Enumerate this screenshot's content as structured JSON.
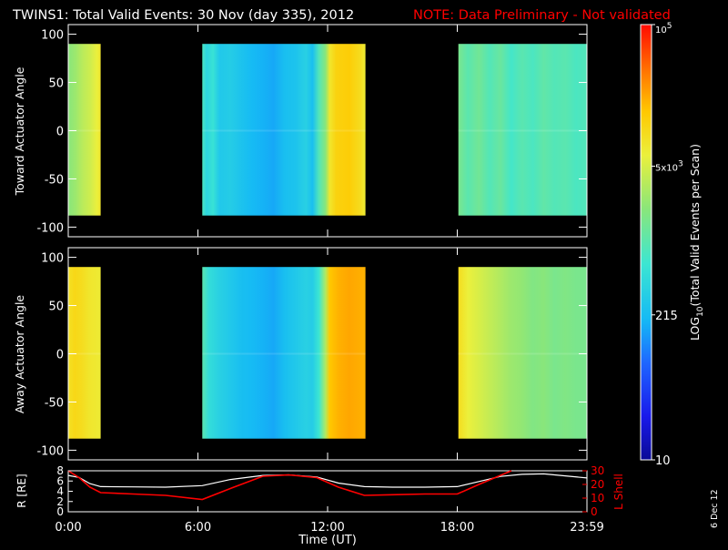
{
  "title": {
    "main": "TWINS1: Total Valid Events: 30 Nov (day 335), 2012",
    "note": "NOTE: Data Preliminary - Not validated"
  },
  "colors": {
    "background": "#000000",
    "text": "#ffffff",
    "note": "#ff0000",
    "r_line": "#ffffff",
    "lshell_line": "#ff0000"
  },
  "date_stamp": "6 Dec 12",
  "xlabel": "Time (UT)",
  "x_ticks": [
    "0:00",
    "6:00",
    "12:00",
    "18:00",
    "23:59"
  ],
  "colorbar": {
    "label": "LOG10(Total Valid Events per Scan)",
    "ticks": [
      "10",
      "215",
      "5x10^3",
      "10^5"
    ],
    "scale": "log",
    "range": [
      10,
      100000
    ]
  },
  "chart_data": [
    {
      "type": "heatmap",
      "name": "toward",
      "ylabel": "Toward Actuator Angle",
      "ylim": [
        -110,
        110
      ],
      "y_ticks": [
        100,
        50,
        0,
        -50,
        -100
      ],
      "data_y_range": [
        -88,
        90
      ],
      "blocks": [
        {
          "t_start": 0.0,
          "t_end": 1.5,
          "profile": [
            [
              0.0,
              3.3
            ],
            [
              0.33,
              3.4
            ],
            [
              0.67,
              3.55
            ],
            [
              1.0,
              3.65
            ],
            [
              1.33,
              3.8
            ],
            [
              1.5,
              3.9
            ]
          ]
        },
        {
          "t_start": 6.2,
          "t_end": 13.75,
          "profile": [
            [
              6.2,
              2.9
            ],
            [
              6.4,
              2.6
            ],
            [
              6.7,
              2.75
            ],
            [
              7.0,
              2.45
            ],
            [
              7.5,
              2.5
            ],
            [
              8.0,
              2.4
            ],
            [
              8.5,
              2.3
            ],
            [
              9.0,
              2.25
            ],
            [
              9.5,
              2.2
            ],
            [
              10.0,
              2.35
            ],
            [
              10.5,
              2.4
            ],
            [
              11.0,
              2.55
            ],
            [
              11.3,
              2.35
            ],
            [
              11.6,
              2.95
            ],
            [
              11.9,
              3.3
            ],
            [
              12.1,
              3.9
            ],
            [
              12.4,
              4.1
            ],
            [
              13.0,
              4.15
            ],
            [
              13.5,
              4.0
            ],
            [
              13.75,
              3.85
            ]
          ]
        },
        {
          "t_start": 18.05,
          "t_end": 24.0,
          "profile": [
            [
              18.05,
              3.2
            ],
            [
              18.5,
              3.0
            ],
            [
              19.0,
              3.15
            ],
            [
              19.5,
              2.95
            ],
            [
              20.0,
              3.1
            ],
            [
              20.5,
              2.85
            ],
            [
              21.0,
              3.0
            ],
            [
              21.5,
              2.9
            ],
            [
              22.0,
              3.05
            ],
            [
              22.5,
              2.95
            ],
            [
              23.0,
              3.0
            ],
            [
              23.5,
              2.9
            ],
            [
              24.0,
              2.95
            ]
          ]
        }
      ]
    },
    {
      "type": "heatmap",
      "name": "away",
      "ylabel": "Away Actuator Angle",
      "ylim": [
        -110,
        110
      ],
      "y_ticks": [
        100,
        50,
        0,
        -50,
        -100
      ],
      "data_y_range": [
        -88,
        90
      ],
      "blocks": [
        {
          "t_start": 0.0,
          "t_end": 1.5,
          "profile": [
            [
              0.0,
              3.95
            ],
            [
              0.3,
              4.05
            ],
            [
              0.6,
              4.0
            ],
            [
              1.0,
              3.9
            ],
            [
              1.5,
              3.85
            ]
          ]
        },
        {
          "t_start": 6.2,
          "t_end": 13.75,
          "profile": [
            [
              6.2,
              3.0
            ],
            [
              6.5,
              2.7
            ],
            [
              7.0,
              2.55
            ],
            [
              7.5,
              2.45
            ],
            [
              8.0,
              2.35
            ],
            [
              8.5,
              2.3
            ],
            [
              9.0,
              2.25
            ],
            [
              9.5,
              2.2
            ],
            [
              10.0,
              2.35
            ],
            [
              10.5,
              2.45
            ],
            [
              11.0,
              2.55
            ],
            [
              11.3,
              2.5
            ],
            [
              11.6,
              2.8
            ],
            [
              11.9,
              3.5
            ],
            [
              12.1,
              4.2
            ],
            [
              12.5,
              4.3
            ],
            [
              13.0,
              4.35
            ],
            [
              13.75,
              4.3
            ]
          ]
        },
        {
          "t_start": 18.05,
          "t_end": 24.0,
          "profile": [
            [
              18.05,
              4.0
            ],
            [
              18.5,
              3.8
            ],
            [
              19.0,
              3.7
            ],
            [
              19.5,
              3.6
            ],
            [
              20.0,
              3.5
            ],
            [
              20.5,
              3.4
            ],
            [
              21.0,
              3.35
            ],
            [
              21.5,
              3.25
            ],
            [
              22.0,
              3.3
            ],
            [
              22.5,
              3.2
            ],
            [
              23.0,
              3.25
            ],
            [
              23.5,
              3.2
            ],
            [
              24.0,
              3.2
            ]
          ]
        }
      ]
    },
    {
      "type": "line",
      "name": "orbit",
      "ylabel_left": "R [RE]",
      "ylabel_right": "L Shell",
      "ylim_left": [
        0,
        8
      ],
      "ylim_right": [
        0,
        30
      ],
      "y_ticks_left": [
        "8",
        "6",
        "4",
        "2",
        "0"
      ],
      "y_ticks_right": [
        "30",
        "20",
        "10",
        "0"
      ],
      "series": [
        {
          "name": "R",
          "axis": "left",
          "color": "#ffffff",
          "x": [
            0,
            0.5,
            1.0,
            1.5,
            3,
            4.5,
            6.2,
            7.5,
            9,
            10.2,
            11.5,
            12.5,
            13.7,
            15,
            16.5,
            18,
            19,
            20,
            21,
            22,
            23,
            24
          ],
          "y": [
            7.1,
            6.7,
            5.5,
            4.9,
            4.85,
            4.8,
            5.1,
            6.3,
            7.1,
            7.2,
            6.8,
            5.6,
            4.9,
            4.8,
            4.8,
            4.9,
            5.9,
            6.9,
            7.3,
            7.4,
            7.0,
            6.6
          ]
        },
        {
          "name": "L Shell",
          "axis": "right",
          "color": "#ff0000",
          "x": [
            0,
            0.5,
            1.0,
            1.5,
            3,
            4.5,
            6.2,
            7.5,
            9,
            10.2,
            11.5,
            12.5,
            13.7,
            15,
            16.5,
            18,
            19,
            20.5
          ],
          "y": [
            30,
            25,
            18,
            14,
            13,
            12,
            9,
            17,
            26,
            27,
            25,
            18,
            12,
            12.5,
            13,
            13,
            20,
            30
          ]
        }
      ]
    }
  ]
}
